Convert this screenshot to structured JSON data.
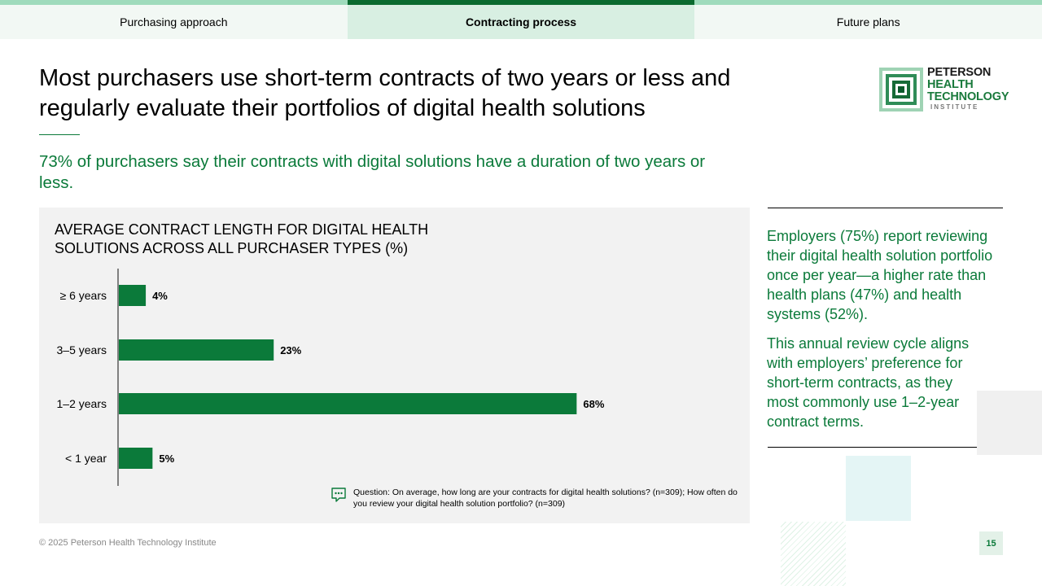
{
  "tabs": [
    {
      "label": "Purchasing approach",
      "active": false
    },
    {
      "label": "Contracting process",
      "active": true
    },
    {
      "label": "Future plans",
      "active": false
    }
  ],
  "title": "Most purchasers use short-term contracts of two years or less and regularly evaluate their portfolios of digital health solutions",
  "subtitle": "73% of purchasers say their contracts with digital solutions have a duration of two years or less.",
  "logo": {
    "line1": "PETERSON",
    "line2": "HEALTH",
    "line3": "TECHNOLOGY",
    "line4": "INSTITUTE"
  },
  "chart_data": {
    "type": "bar",
    "orientation": "horizontal",
    "title": "AVERAGE CONTRACT LENGTH FOR DIGITAL HEALTH SOLUTIONS ACROSS ALL PURCHASER TYPES (%)",
    "categories": [
      "≥ 6 years",
      "3–5 years",
      "1–2 years",
      "< 1 year"
    ],
    "values": [
      4,
      23,
      68,
      5
    ],
    "value_labels": [
      "4%",
      "23%",
      "68%",
      "5%"
    ],
    "xlim": [
      0,
      100
    ],
    "grid": false,
    "bar_color": "#0b7a3a"
  },
  "note": "Question: On average, how long are your contracts for digital health solutions? (n=309); How often do you review your digital health solution portfolio? (n=309)",
  "sidebar": {
    "paragraph1": "Employers (75%) report reviewing their digital health solution portfolio once per year—a higher rate than health plans (47%) and health systems (52%).",
    "paragraph2": "This annual review cycle aligns with employers’ preference for short-term contracts, as they most commonly use 1–2-year contract terms."
  },
  "footer": "© 2025 Peterson Health Technology Institute",
  "page_number": "15",
  "colors": {
    "accent": "#0b7a3a",
    "tab_active_border": "#0b6b2f",
    "tab_border": "#9fdbbc",
    "panel_bg": "#f2f2f2"
  }
}
